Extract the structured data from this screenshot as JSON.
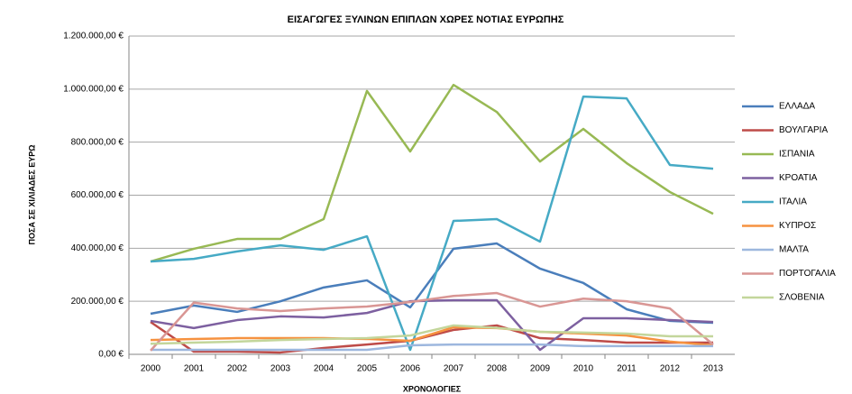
{
  "chart_data": {
    "type": "line",
    "title": "ΕΙΣΑΓΩΓΕΣ ΞΥΛΙΝΩΝ ΕΠΙΠΛΩΝ ΧΩΡΕΣ ΝΟΤΙΑΣ ΕΥΡΩΠΗΣ",
    "x_label": "ΧΡΟΝΟΛΟΓΙΕΣ",
    "y_label": "ΠΟΣΑ ΣΕ ΧΙΛΙΑΔΕΣ ΕΥΡΩ",
    "categories": [
      "2000",
      "2001",
      "2002",
      "2003",
      "2004",
      "2005",
      "2006",
      "2007",
      "2008",
      "2009",
      "2010",
      "2011",
      "2012",
      "2013"
    ],
    "ylim": [
      0,
      1200000
    ],
    "yticks": [
      {
        "value": 0,
        "label": "0,00 €"
      },
      {
        "value": 200000,
        "label": "200.000,00 €"
      },
      {
        "value": 400000,
        "label": "400.000,00 €"
      },
      {
        "value": 600000,
        "label": "600.000,00 €"
      },
      {
        "value": 800000,
        "label": "800.000,00 €"
      },
      {
        "value": 1000000,
        "label": "1.000.000,00 €"
      },
      {
        "value": 1200000,
        "label": "1.200.000,00 €"
      }
    ],
    "grid": true,
    "legend": "right",
    "series": [
      {
        "name": "ΕΛΛΑΔΑ",
        "color": "#4a7ebb",
        "values": [
          153000,
          184000,
          160000,
          200000,
          252000,
          279000,
          177000,
          398000,
          418000,
          323000,
          269000,
          170000,
          126000,
          119000
        ]
      },
      {
        "name": "ΒΟΥΛΓΑΡΙΑ",
        "color": "#be4b48",
        "values": [
          122000,
          10000,
          10000,
          7000,
          24000,
          37000,
          51000,
          92000,
          109000,
          61000,
          54000,
          44000,
          44000,
          44000
        ]
      },
      {
        "name": "ΙΣΠΑΝΙΑ",
        "color": "#98b954",
        "values": [
          350000,
          398000,
          435000,
          435000,
          510000,
          993000,
          765000,
          1016000,
          914000,
          727000,
          850000,
          721000,
          612000,
          530000
        ]
      },
      {
        "name": "ΚΡΟΑΤΙΑ",
        "color": "#7d60a0",
        "values": [
          126000,
          99000,
          129000,
          143000,
          139000,
          156000,
          200000,
          204000,
          204000,
          17000,
          136000,
          136000,
          129000,
          122000
        ]
      },
      {
        "name": "ΙΤΑΛΙΑ",
        "color": "#46aac5",
        "values": [
          350000,
          360000,
          388000,
          411000,
          394000,
          445000,
          17000,
          503000,
          510000,
          425000,
          972000,
          965000,
          714000,
          700000
        ]
      },
      {
        "name": "ΚΥΠΡΟΣ",
        "color": "#f69240",
        "values": [
          54000,
          58000,
          61000,
          61000,
          61000,
          58000,
          51000,
          102000,
          99000,
          85000,
          78000,
          71000,
          48000,
          34000
        ]
      },
      {
        "name": "ΜΑΛΤΑ",
        "color": "#9db7de",
        "values": [
          17000,
          17000,
          17000,
          17000,
          17000,
          17000,
          34000,
          37000,
          37000,
          37000,
          31000,
          31000,
          31000,
          31000
        ]
      },
      {
        "name": "ΠΟΡΤΟΓΑΛΙΑ",
        "color": "#d99694",
        "values": [
          14000,
          195000,
          173000,
          163000,
          173000,
          180000,
          197000,
          220000,
          231000,
          180000,
          210000,
          200000,
          173000,
          37000
        ]
      },
      {
        "name": "ΣΛΟΒΕΝΙΑ",
        "color": "#c3d69b",
        "values": [
          40000,
          44000,
          48000,
          54000,
          58000,
          61000,
          71000,
          109000,
          100000,
          85000,
          82000,
          78000,
          68000,
          68000
        ]
      }
    ]
  }
}
